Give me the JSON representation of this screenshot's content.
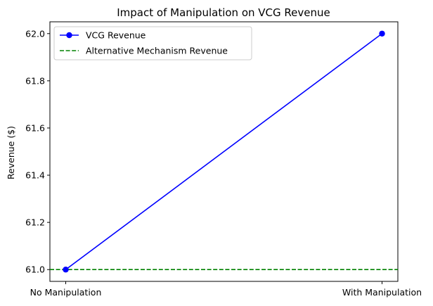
{
  "chart_data": {
    "type": "line",
    "title": "Impact of Manipulation on VCG Revenue",
    "xlabel": "",
    "ylabel": "Revenue ($)",
    "categories": [
      "No Manipulation",
      "With Manipulation"
    ],
    "ylim": [
      60.95,
      62.05
    ],
    "yticks": [
      61.0,
      61.2,
      61.4,
      61.6,
      61.8,
      62.0
    ],
    "ytick_labels": [
      "61.0",
      "61.2",
      "61.4",
      "61.6",
      "61.8",
      "62.0"
    ],
    "grid": false,
    "legend_position": "top-left",
    "series": [
      {
        "name": "VCG Revenue",
        "values": [
          61.0,
          62.0
        ],
        "color": "#0000ff",
        "style": "solid",
        "marker": "circle"
      }
    ],
    "reference_lines": [
      {
        "name": "Alternative Mechanism Revenue",
        "value": 61.0,
        "color": "#008000",
        "style": "dashed"
      }
    ]
  }
}
